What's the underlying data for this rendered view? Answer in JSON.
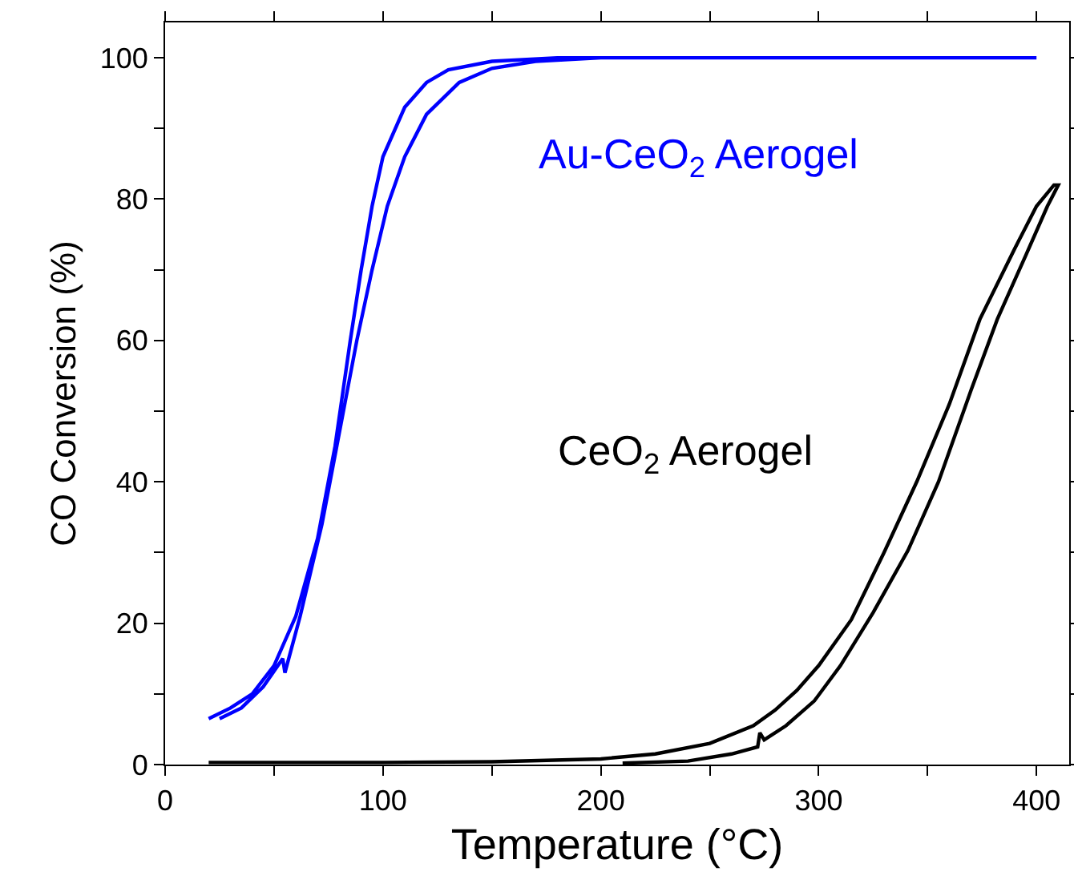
{
  "chart_data": {
    "type": "line",
    "xlabel": "Temperature (°C)",
    "ylabel": "CO Conversion (%)",
    "xlim": [
      0,
      415
    ],
    "ylim": [
      0,
      105
    ],
    "xticks": [
      0,
      {
        "value": 50,
        "label": null
      },
      100,
      {
        "value": 150,
        "label": null
      },
      200,
      {
        "value": 250,
        "label": null
      },
      300,
      {
        "value": 350,
        "label": null
      },
      400
    ],
    "yticks": [
      0,
      {
        "value": 10,
        "label": null
      },
      20,
      {
        "value": 30,
        "label": null
      },
      40,
      {
        "value": 50,
        "label": null
      },
      60,
      {
        "value": 70,
        "label": null
      },
      80,
      {
        "value": 90,
        "label": null
      },
      100
    ],
    "grid": false,
    "legend": false,
    "marker": "none",
    "line_style": "solid",
    "series": [
      {
        "name": "Au-CeO$_{2}$ Aerogel",
        "color": "#0000ff",
        "x": [
          20,
          30,
          40,
          50,
          60,
          70,
          78,
          85,
          90,
          95,
          100,
          110,
          120,
          130,
          150,
          180,
          250,
          300,
          350,
          400,
          300,
          200,
          170,
          150,
          135,
          120,
          110,
          102,
          95,
          88,
          80,
          72,
          62,
          55,
          54,
          45,
          35,
          25
        ],
        "values": [
          6.5,
          8,
          10,
          14,
          21,
          32,
          45,
          60,
          70,
          79,
          86,
          93,
          96.5,
          98.3,
          99.5,
          100,
          100,
          100,
          100,
          100,
          100,
          100,
          99.5,
          98.5,
          96.5,
          92,
          86,
          79,
          70,
          60,
          47,
          34,
          21,
          13,
          15,
          11,
          8,
          6.5
        ]
      },
      {
        "name": "CeO$_{2}$ Aerogel",
        "color": "#000000",
        "x": [
          20,
          100,
          150,
          200,
          225,
          250,
          270,
          280,
          290,
          300,
          315,
          330,
          345,
          360,
          374,
          390,
          400,
          408,
          410,
          405,
          395,
          382,
          370,
          355,
          341,
          325,
          310,
          298,
          285,
          275,
          273,
          272,
          260,
          240,
          210
        ],
        "values": [
          0.3,
          0.3,
          0.4,
          0.8,
          1.5,
          3,
          5.5,
          7.7,
          10.5,
          14,
          20.5,
          30,
          40,
          51,
          63,
          73,
          79,
          82,
          82,
          79,
          72,
          63,
          53,
          40,
          30.3,
          21.5,
          14,
          9,
          5.5,
          3.5,
          4.5,
          2.5,
          1.5,
          0.5,
          0.2
        ]
      }
    ]
  }
}
